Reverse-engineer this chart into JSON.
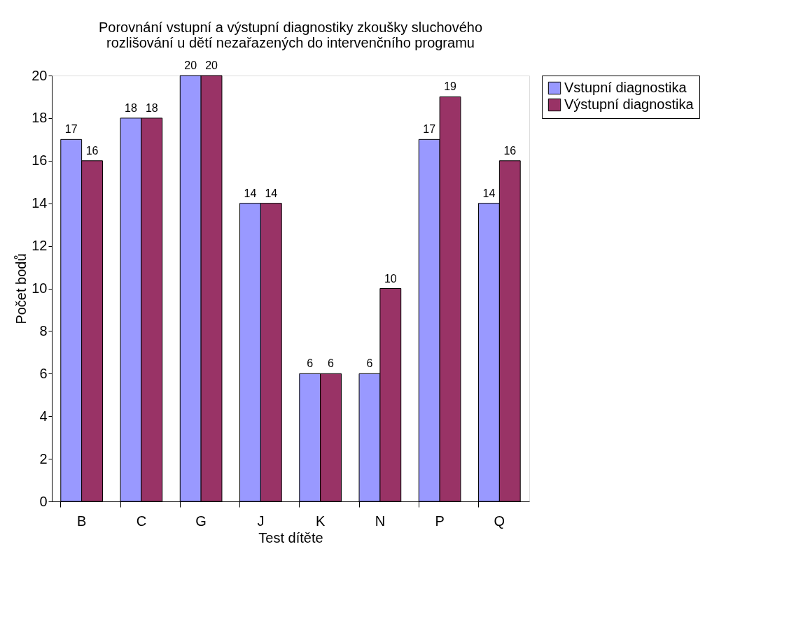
{
  "chart_data": {
    "type": "bar",
    "title": "Porovnání vstupní a výstupní diagnostiky zkoušky sluchového\nrozlišování u dětí nezařazených do intervenčního programu",
    "xlabel": "Test dítěte",
    "ylabel": "Počet bodů",
    "categories": [
      "B",
      "C",
      "G",
      "J",
      "K",
      "N",
      "P",
      "Q"
    ],
    "series": [
      {
        "name": "Vstupní diagnostika",
        "color": "#9999ff",
        "values": [
          17,
          18,
          20,
          14,
          6,
          6,
          17,
          14
        ]
      },
      {
        "name": "Výstupní diagnostika",
        "color": "#993366",
        "values": [
          16,
          18,
          20,
          14,
          6,
          10,
          19,
          16
        ]
      }
    ],
    "ylim": [
      0,
      20
    ],
    "yticks": [
      0,
      2,
      4,
      6,
      8,
      10,
      12,
      14,
      16,
      18,
      20
    ],
    "grid": false,
    "legend": "right",
    "data_labels": true
  }
}
